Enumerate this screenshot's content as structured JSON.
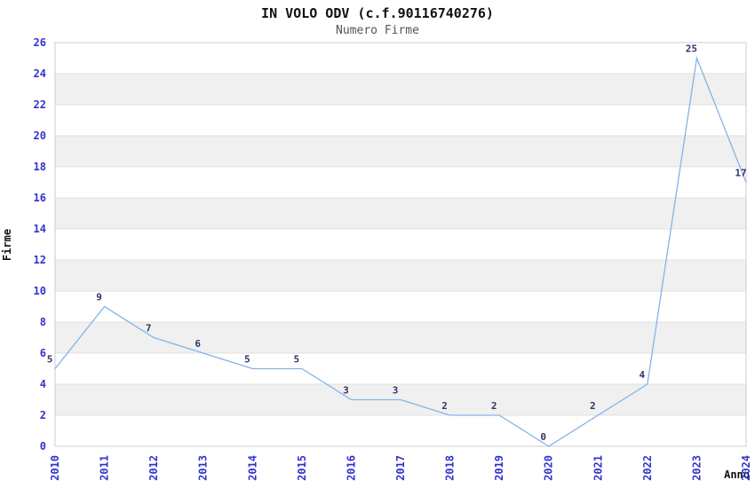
{
  "chart_data": {
    "type": "line",
    "title": "IN VOLO ODV (c.f.90116740276)",
    "subtitle": "Numero Firme",
    "xlabel": "Anno",
    "ylabel": "Firme",
    "categories": [
      "2010",
      "2011",
      "2012",
      "2013",
      "2014",
      "2015",
      "2016",
      "2017",
      "2018",
      "2019",
      "2020",
      "2021",
      "2022",
      "2023",
      "2024"
    ],
    "series": [
      {
        "name": "Numero Firme",
        "values": [
          5,
          9,
          7,
          6,
          5,
          5,
          3,
          3,
          2,
          2,
          0,
          2,
          4,
          25,
          17
        ]
      }
    ],
    "ylim": [
      0,
      26
    ],
    "ytick_step": 2,
    "grid": true,
    "legend_position": "none",
    "point_labels_visible": true,
    "colors": {
      "line": "#82b4e8",
      "tick_label": "#3333cc",
      "point_label": "#333366",
      "band": "#f0f0f0",
      "grid": "#e0e0e0",
      "border": "#cccccc",
      "title": "#111111",
      "subtitle": "#555555",
      "axis_label": "#111111"
    }
  }
}
